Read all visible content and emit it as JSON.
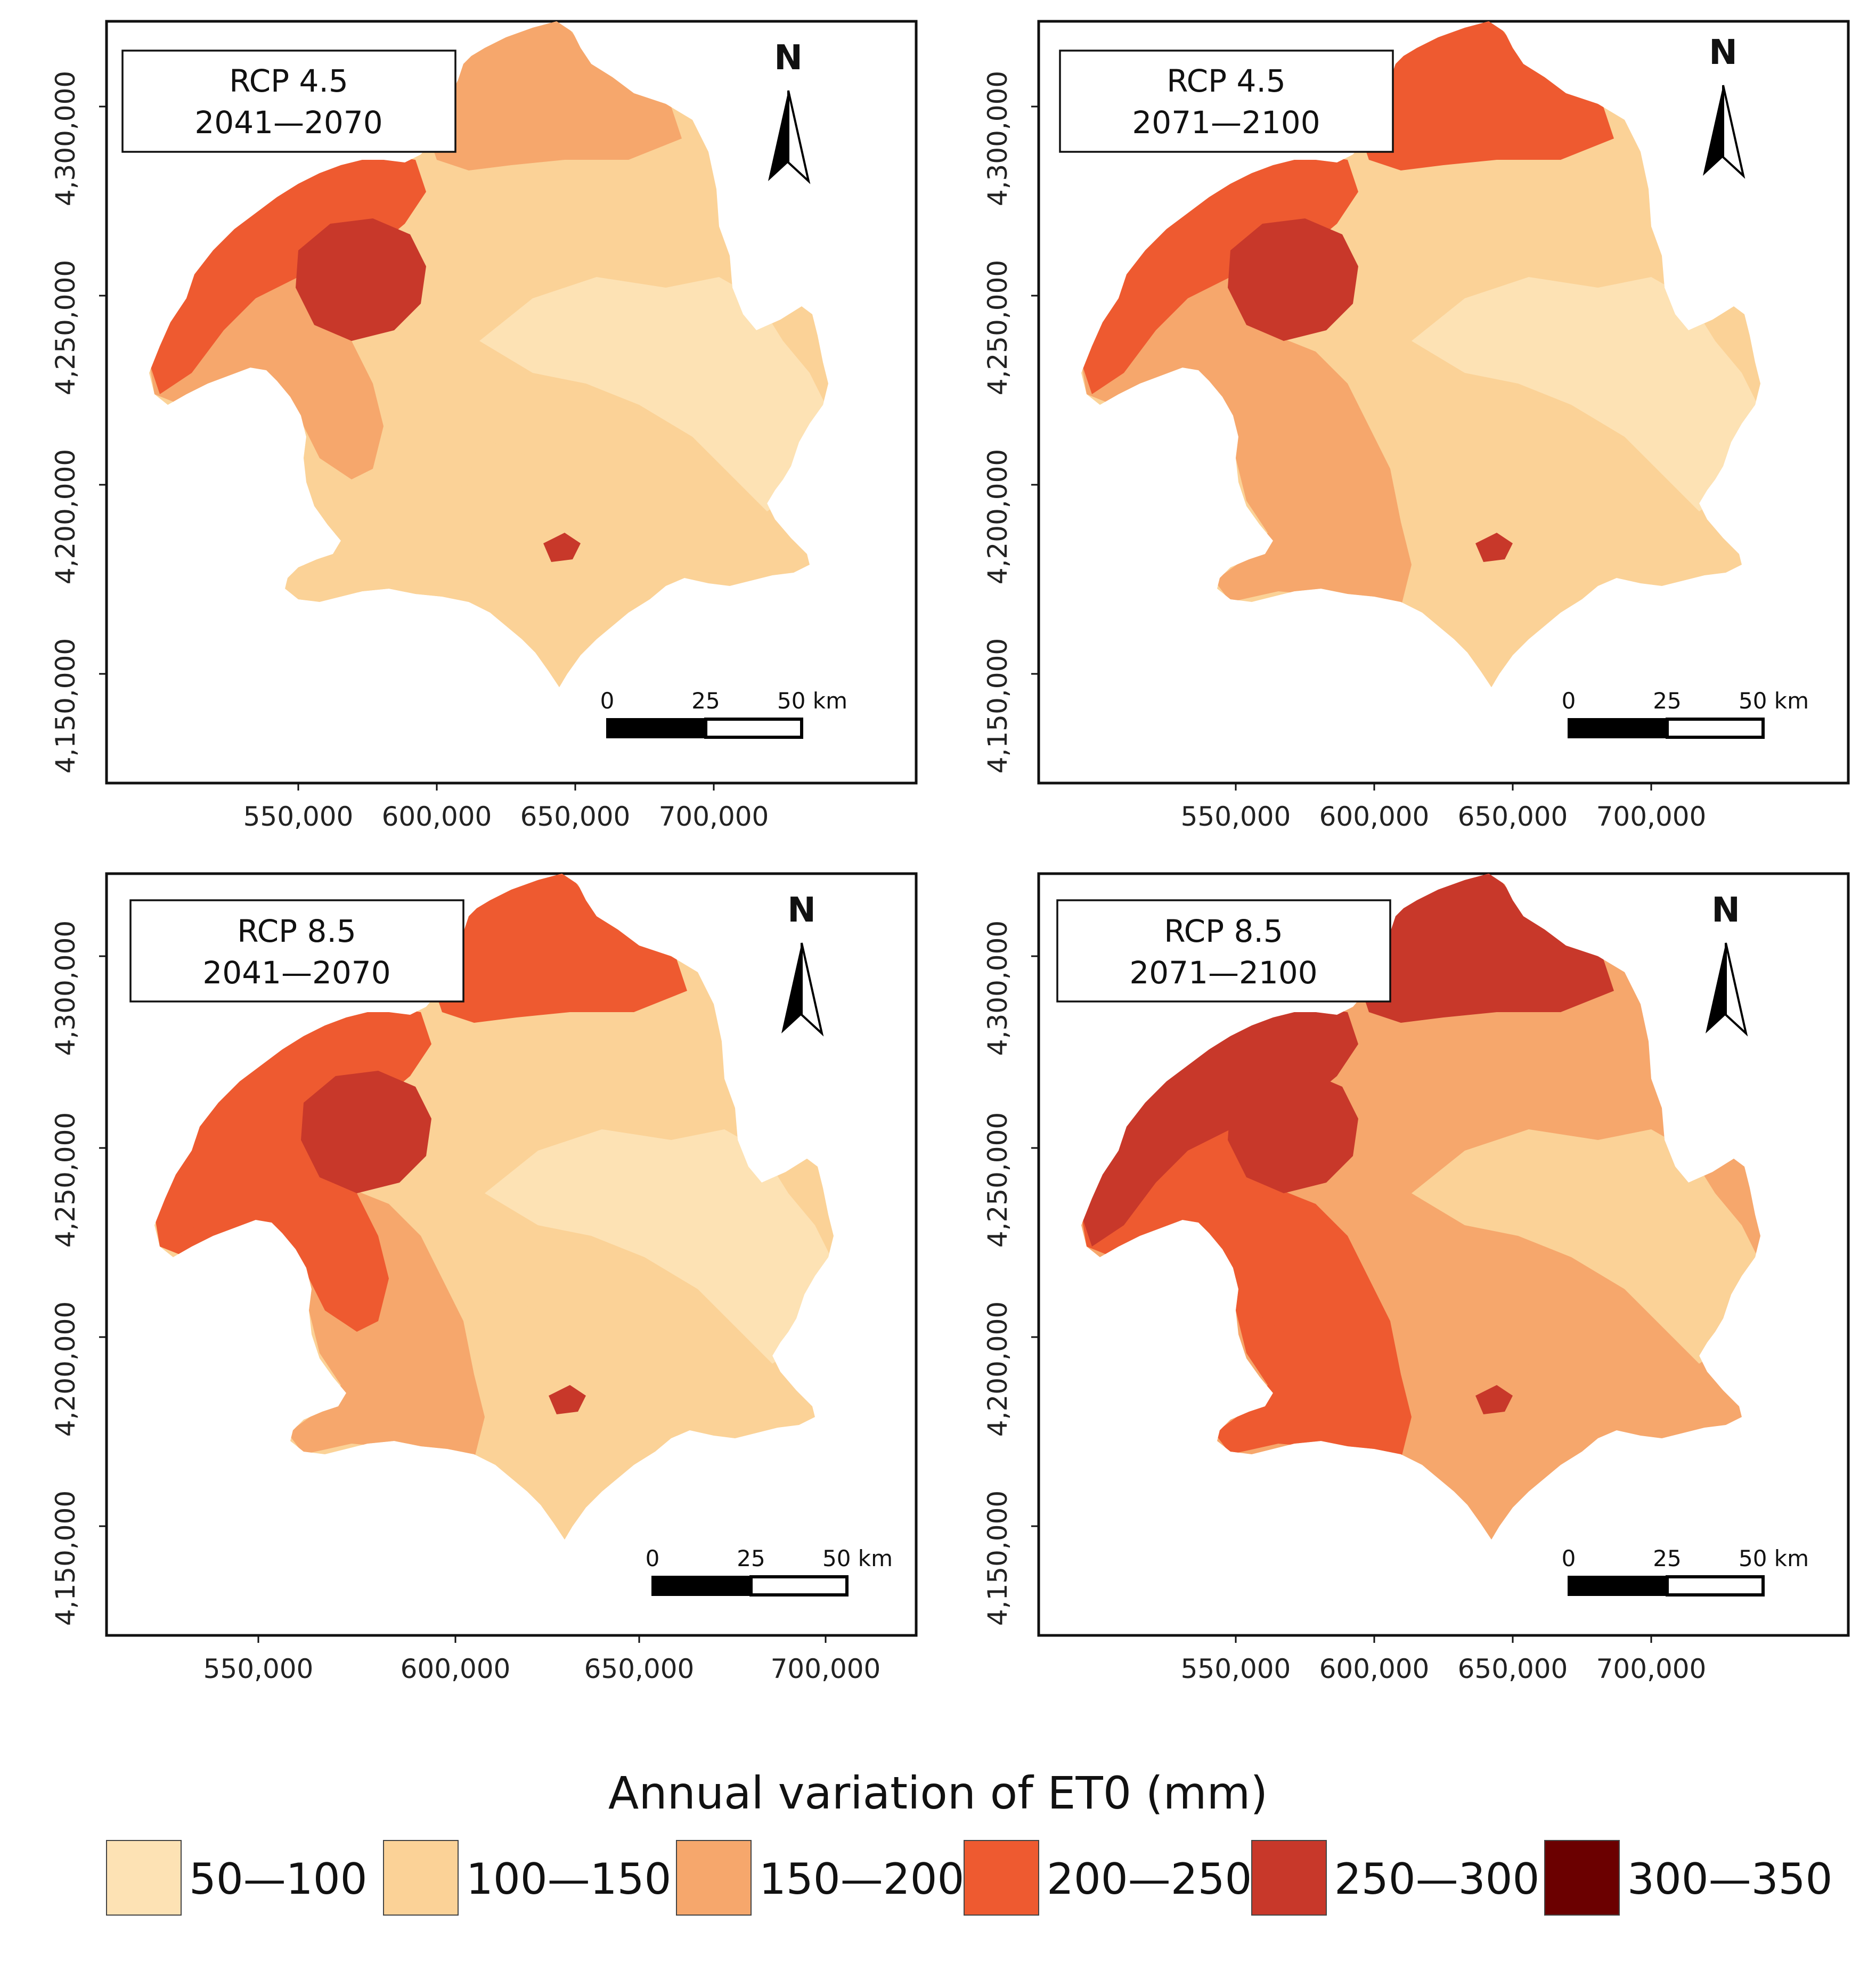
{
  "panels": [
    {
      "scenario": "RCP 4.5",
      "period": "2041—2070",
      "region_classes": {
        "west_hills": "200—250",
        "center_peak": "250—300",
        "north_lobe": "150—200",
        "west_plain": "150—200",
        "south_west": "100—150",
        "interior": "100—150",
        "east_coast": "50—100",
        "south_tail": "100—150"
      }
    },
    {
      "scenario": "RCP 4.5",
      "period": "2071—2100",
      "region_classes": {
        "west_hills": "200—250",
        "center_peak": "250—300",
        "north_lobe": "200—250",
        "west_plain": "150—200",
        "south_west": "150—200",
        "interior": "100—150",
        "east_coast": "50—100",
        "south_tail": "100—150"
      }
    },
    {
      "scenario": "RCP 8.5",
      "period": "2041—2070",
      "region_classes": {
        "west_hills": "200—250",
        "center_peak": "250—300",
        "north_lobe": "200—250",
        "west_plain": "200—250",
        "south_west": "150—200",
        "interior": "100—150",
        "east_coast": "50—100",
        "south_tail": "100—150"
      }
    },
    {
      "scenario": "RCP 8.5",
      "period": "2071—2100",
      "region_classes": {
        "west_hills": "250—300",
        "center_peak": "250—300",
        "north_lobe": "250—300",
        "west_plain": "200—250",
        "south_west": "200—250",
        "interior": "150—200",
        "east_coast": "100—150",
        "south_tail": "150—200"
      }
    }
  ],
  "axes": {
    "x_ticks": [
      "550,000",
      "600,000",
      "650,000",
      "700,000"
    ],
    "y_ticks": [
      "4,300,000",
      "4,250,000",
      "4,200,000",
      "4,150,000"
    ]
  },
  "scale_bar": {
    "labels": [
      "0",
      "25",
      "50 km"
    ]
  },
  "north_arrow": {
    "letter": "N",
    "icon": "north-arrow-icon"
  },
  "legend": {
    "title": "Annual variation of ET0 (mm)",
    "classes": [
      {
        "label": "50—100",
        "color": "#FDE2B4"
      },
      {
        "label": "100—150",
        "color": "#FBD297"
      },
      {
        "label": "150—200",
        "color": "#F6A76C"
      },
      {
        "label": "200—250",
        "color": "#EE5A30"
      },
      {
        "label": "250—300",
        "color": "#C8382A"
      },
      {
        "label": "300—350",
        "color": "#6B0000"
      }
    ]
  }
}
